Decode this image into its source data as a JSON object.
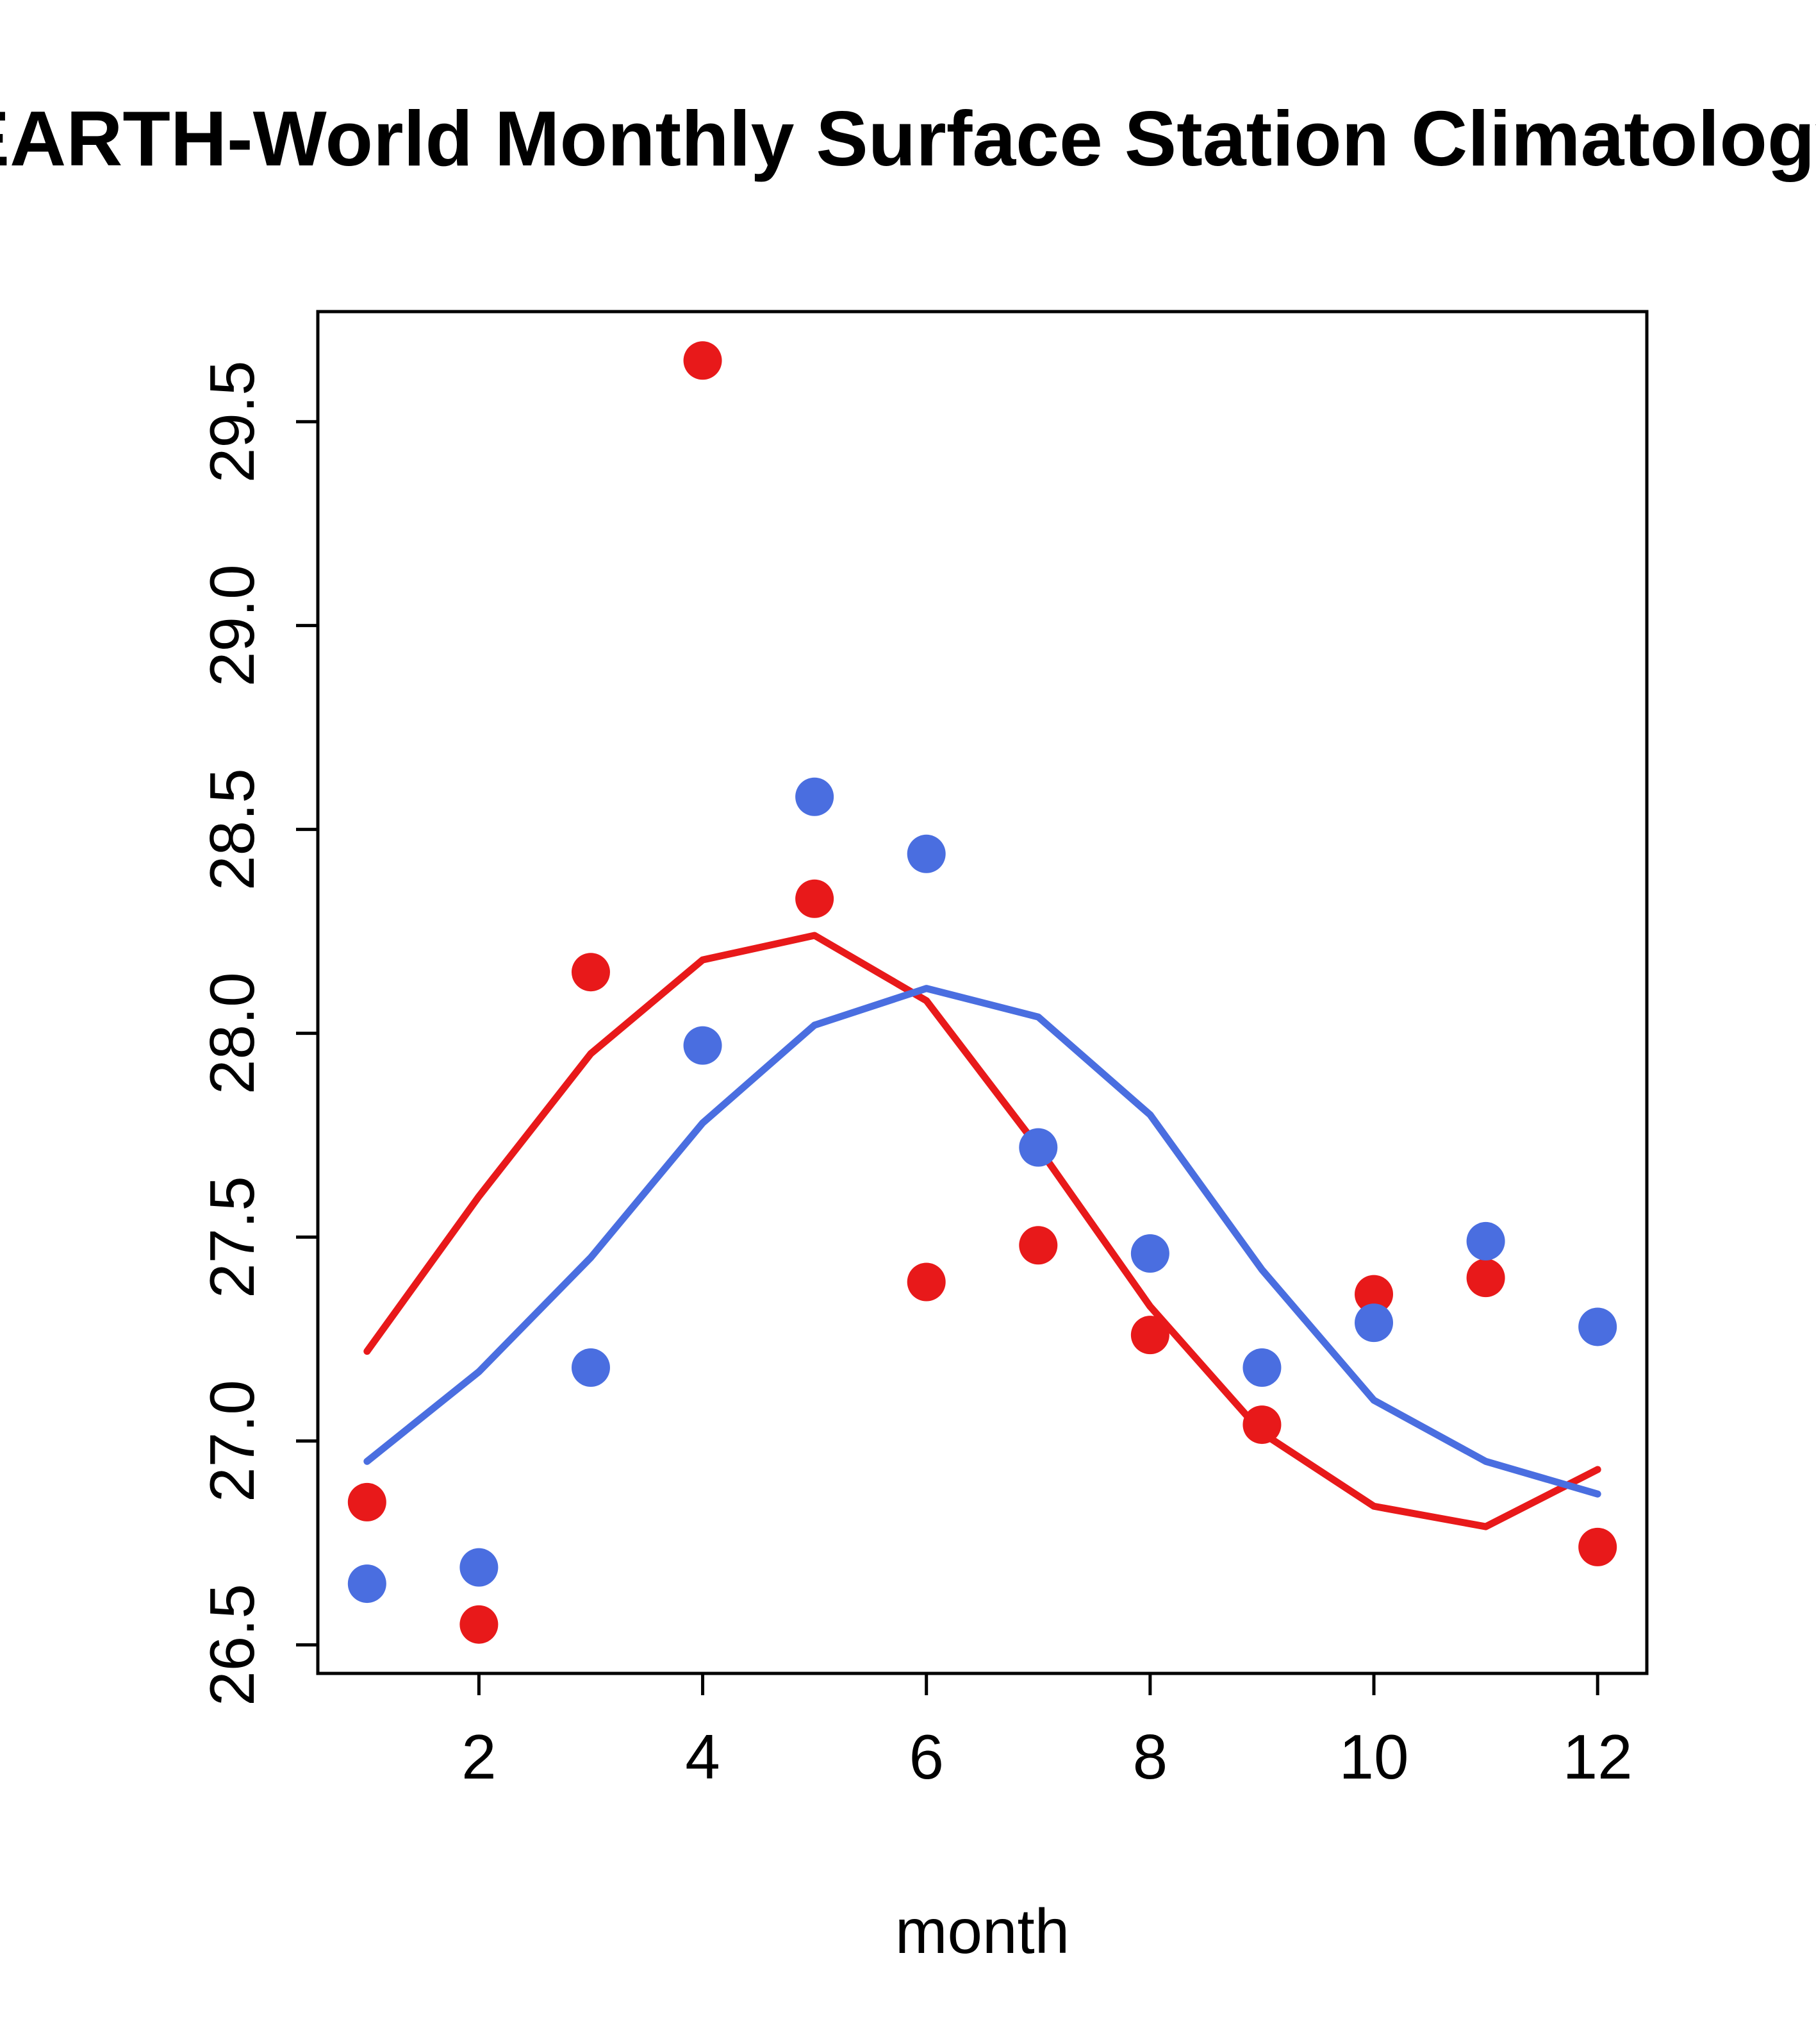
{
  "page": {
    "background_color": "#ffffff"
  },
  "chart_data": {
    "type": "scatter",
    "title": "EARTH-World Monthly Surface Station Climatology",
    "xlabel": "month",
    "ylabel": "",
    "xlim": [
      0.56,
      12.44
    ],
    "ylim": [
      26.43,
      29.77
    ],
    "grid": false,
    "legend": "none",
    "x_ticks": [
      2,
      4,
      6,
      8,
      10,
      12
    ],
    "x_tick_labels": [
      "2",
      "4",
      "6",
      "8",
      "10",
      "12"
    ],
    "y_ticks": [
      26.5,
      27.0,
      27.5,
      28.0,
      28.5,
      29.0,
      29.5
    ],
    "y_tick_labels": [
      "26.5",
      "27.0",
      "27.5",
      "28.0",
      "28.5",
      "29.0",
      "29.5"
    ],
    "x": [
      1,
      2,
      3,
      4,
      5,
      6,
      7,
      8,
      9,
      10,
      11,
      12
    ],
    "colors": {
      "red": "#e8191a",
      "blue": "#4a6ee0",
      "axis": "#000000"
    },
    "series": [
      {
        "name": "red-smooth-line",
        "type": "line",
        "color": "#e8191a",
        "values": [
          27.22,
          27.6,
          27.95,
          28.18,
          28.24,
          28.08,
          27.72,
          27.33,
          27.02,
          26.84,
          26.79,
          26.93
        ]
      },
      {
        "name": "blue-smooth-line",
        "type": "line",
        "color": "#4a6ee0",
        "values": [
          26.95,
          27.17,
          27.45,
          27.78,
          28.02,
          28.11,
          28.04,
          27.8,
          27.42,
          27.1,
          26.95,
          26.87
        ]
      },
      {
        "name": "red-station-points",
        "type": "points",
        "color": "#e8191a",
        "values": [
          26.85,
          26.55,
          28.15,
          29.65,
          28.33,
          27.39,
          27.48,
          27.26,
          27.04,
          27.36,
          27.4,
          26.74
        ]
      },
      {
        "name": "blue-station-points",
        "type": "points",
        "color": "#4a6ee0",
        "values": [
          26.65,
          26.69,
          27.18,
          27.97,
          28.58,
          28.44,
          27.72,
          27.46,
          27.18,
          27.29,
          27.49,
          27.28
        ]
      }
    ]
  }
}
